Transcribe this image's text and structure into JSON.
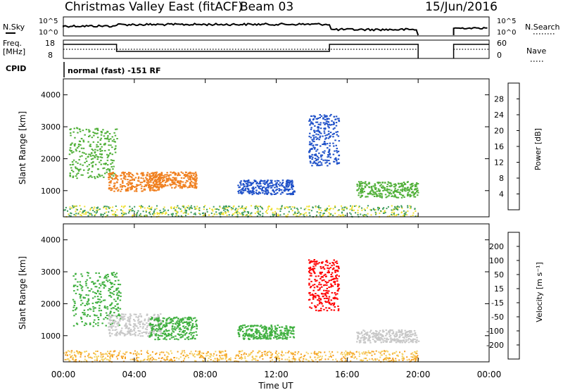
{
  "header": {
    "radar": "Christmas Valley East (fitACF)",
    "beam": "Beam 03",
    "date": "15/Jun/2016"
  },
  "panels": {
    "nsky": {
      "label": "N.Sky",
      "ticks": [
        "10^5",
        "10^0"
      ],
      "right_label": "N.Search",
      "right_ticks": [
        "10^5",
        "10^0"
      ]
    },
    "freq": {
      "label_top": "Freq.",
      "label_bottom": "[MHz]",
      "ticks": [
        "18",
        "8"
      ],
      "right_label": "Nave",
      "right_ticks": [
        "60",
        "0"
      ]
    },
    "cpid": {
      "label": "CPID",
      "text": "normal (fast) -151 RF"
    }
  },
  "chart_data": [
    {
      "type": "heatmap",
      "name": "power",
      "ylabel": "Slant Range [km]",
      "ylim": [
        180,
        4500
      ],
      "yticks": [
        1000,
        2000,
        3000,
        4000
      ],
      "xlabel": "Time UT",
      "xticks": [
        "00:00",
        "04:00",
        "08:00",
        "12:00",
        "16:00",
        "20:00",
        "00:00"
      ],
      "colorbar": {
        "label": "Power [dB]",
        "ticks": [
          "28",
          "24",
          "20",
          "16",
          "12",
          "8",
          "4"
        ],
        "colors": [
          "#0000ff",
          "#1e50c8",
          "#2e8a8a",
          "#3a9a5a",
          "#52b03a",
          "#9ecd30",
          "#f0e030",
          "#f5b020",
          "#f08020",
          "#e84010",
          "#ff0000"
        ]
      },
      "echo_regions": [
        {
          "t": [
            0.3,
            3.0
          ],
          "r": [
            1400,
            3000
          ],
          "level": "medium"
        },
        {
          "t": [
            2.5,
            5.5
          ],
          "r": [
            1000,
            1600
          ],
          "level": "high"
        },
        {
          "t": [
            4.8,
            7.5
          ],
          "r": [
            1100,
            1600
          ],
          "level": "high"
        },
        {
          "t": [
            9.8,
            13.0
          ],
          "r": [
            900,
            1350
          ],
          "level": "low"
        },
        {
          "t": [
            13.8,
            15.5
          ],
          "r": [
            1800,
            3400
          ],
          "level": "low"
        },
        {
          "t": [
            16.5,
            20.0
          ],
          "r": [
            800,
            1300
          ],
          "level": "medium"
        }
      ]
    },
    {
      "type": "heatmap",
      "name": "velocity",
      "ylabel": "Slant Range [km]",
      "ylim": [
        180,
        4500
      ],
      "yticks": [
        1000,
        2000,
        3000,
        4000
      ],
      "xlabel": "Time UT",
      "xticks": [
        "00:00",
        "04:00",
        "08:00",
        "12:00",
        "16:00",
        "20:00",
        "00:00"
      ],
      "colorbar": {
        "label": "Velocity [m s⁻¹]",
        "ticks": [
          "200",
          "100",
          "50",
          "15",
          "-15",
          "-50",
          "-100",
          "-200"
        ],
        "colors": [
          "#ff0000",
          "#f06010",
          "#f5a020",
          "#f5d060",
          "#c8c8c8",
          "#c8c8c8",
          "#90d850",
          "#40b040",
          "#308060",
          "#2050b0",
          "#0000c8"
        ]
      },
      "echo_regions": [
        {
          "t": [
            0.5,
            3.2
          ],
          "r": [
            1300,
            3000
          ],
          "level": "green"
        },
        {
          "t": [
            2.5,
            5.5
          ],
          "r": [
            1000,
            1700
          ],
          "level": "grey"
        },
        {
          "t": [
            4.8,
            7.5
          ],
          "r": [
            900,
            1600
          ],
          "level": "green"
        },
        {
          "t": [
            9.8,
            13.0
          ],
          "r": [
            900,
            1350
          ],
          "level": "green"
        },
        {
          "t": [
            13.8,
            15.5
          ],
          "r": [
            1800,
            3400
          ],
          "level": "red"
        },
        {
          "t": [
            16.5,
            20.0
          ],
          "r": [
            800,
            1200
          ],
          "level": "grey"
        }
      ]
    }
  ]
}
